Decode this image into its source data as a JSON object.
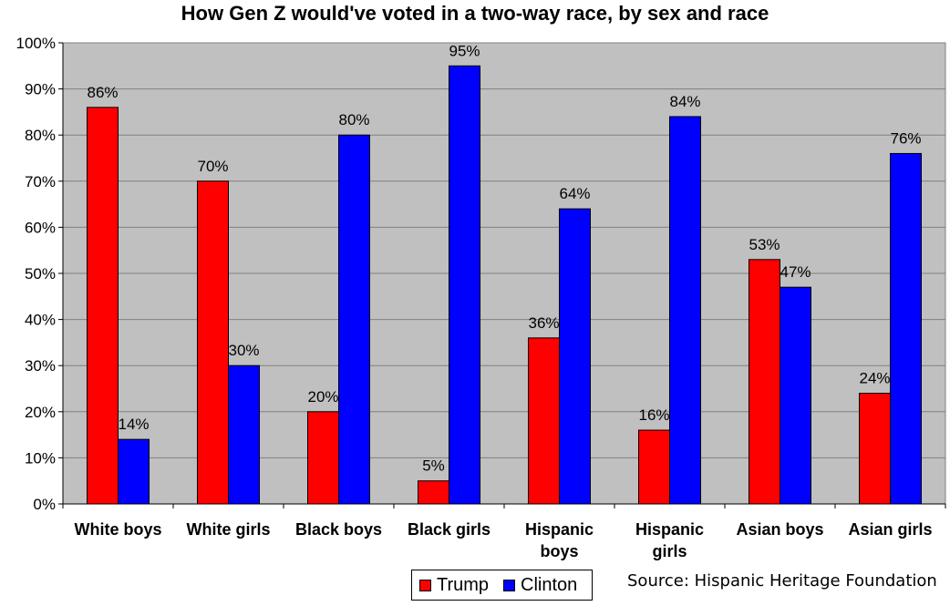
{
  "chart_data": {
    "type": "bar",
    "title": "How Gen Z would've voted in a two-way race, by sex and race",
    "categories": [
      [
        "White boys"
      ],
      [
        "White girls"
      ],
      [
        "Black boys"
      ],
      [
        "Black girls"
      ],
      [
        "Hispanic",
        "boys"
      ],
      [
        "Hispanic",
        "girls"
      ],
      [
        "Asian boys"
      ],
      [
        "Asian girls"
      ]
    ],
    "series": [
      {
        "name": "Trump",
        "color": "#ff0000",
        "values": [
          86,
          70,
          20,
          5,
          36,
          16,
          53,
          24
        ]
      },
      {
        "name": "Clinton",
        "color": "#0000ff",
        "values": [
          14,
          30,
          80,
          95,
          64,
          84,
          47,
          76
        ]
      }
    ],
    "ylim": [
      0,
      100
    ],
    "yticks": [
      "0%",
      "10%",
      "20%",
      "30%",
      "40%",
      "50%",
      "60%",
      "70%",
      "80%",
      "90%",
      "100%"
    ],
    "value_suffix": "%",
    "xlabel": "",
    "ylabel": "",
    "grid": true,
    "legend_position": "bottom",
    "plot_background": "#c0c0c0",
    "source": "Source: Hispanic Heritage Foundation"
  }
}
